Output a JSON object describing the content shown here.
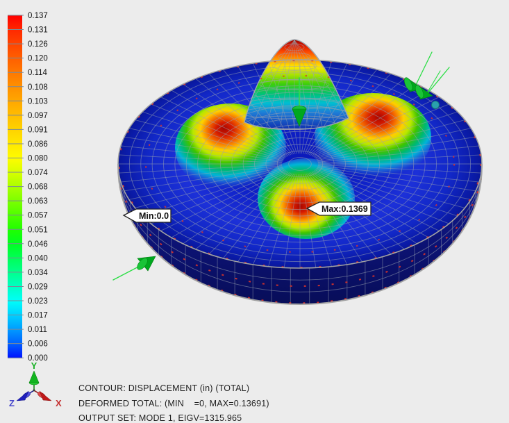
{
  "window": {
    "background": "#ececec"
  },
  "legend": {
    "values": [
      "0.137",
      "0.131",
      "0.126",
      "0.120",
      "0.114",
      "0.108",
      "0.103",
      "0.097",
      "0.091",
      "0.086",
      "0.080",
      "0.074",
      "0.068",
      "0.063",
      "0.057",
      "0.051",
      "0.046",
      "0.040",
      "0.034",
      "0.029",
      "0.023",
      "0.017",
      "0.011",
      "0.006",
      "0.000"
    ],
    "boundary_colors": [
      "#ff0000",
      "#ff2800",
      "#ff4400",
      "#ff5f00",
      "#ff7800",
      "#ff9000",
      "#ffa700",
      "#ffbd00",
      "#ffd300",
      "#ffe800",
      "#fffc00",
      "#d7ff00",
      "#aaff00",
      "#7cff00",
      "#4eff00",
      "#20ff00",
      "#00ff21",
      "#00ff57",
      "#00ff8d",
      "#00ffc3",
      "#00fff9",
      "#00d0ff",
      "#009bff",
      "#0060ff",
      "#0010ff"
    ],
    "tick_color": "#7d8a97",
    "text_color": "#111111"
  },
  "model": {
    "base_color": "#0e1cbe",
    "rim_color": "#0d1380",
    "mesh_color": "#99a3ae",
    "edge_dash_color": "#e03428",
    "arrow_color": "#22c93a",
    "node_color": "#2aa1ad",
    "min_marker": {
      "label": "Min:0.0"
    },
    "max_marker": {
      "label": "Max:0.1369"
    }
  },
  "triad": {
    "x_label": "X",
    "y_label": "Y",
    "z_label": "Z",
    "x_color": "#c43030",
    "y_color": "#17b023",
    "z_color": "#4646cc"
  },
  "footer": {
    "lines": [
      "CONTOUR: DISPLACEMENT (in) (TOTAL)",
      "DEFORMED TOTAL: (MIN    =0, MAX=0.13691)",
      "OUTPUT SET: MODE 1, EIGV=1315.965"
    ]
  },
  "chart_data": {
    "type": "heatmap",
    "title": "CONTOUR: DISPLACEMENT (in) (TOTAL)",
    "units": "in",
    "legend_levels": [
      0.137,
      0.131,
      0.126,
      0.12,
      0.114,
      0.108,
      0.103,
      0.097,
      0.091,
      0.086,
      0.08,
      0.074,
      0.068,
      0.063,
      0.057,
      0.051,
      0.046,
      0.04,
      0.034,
      0.029,
      0.023,
      0.017,
      0.011,
      0.006,
      0.0
    ],
    "min": 0.0,
    "max": 0.13691,
    "output_set": "MODE 1",
    "eigenvalue": 1315.965,
    "annotations": [
      "Min:0.0",
      "Max:0.1369"
    ]
  }
}
